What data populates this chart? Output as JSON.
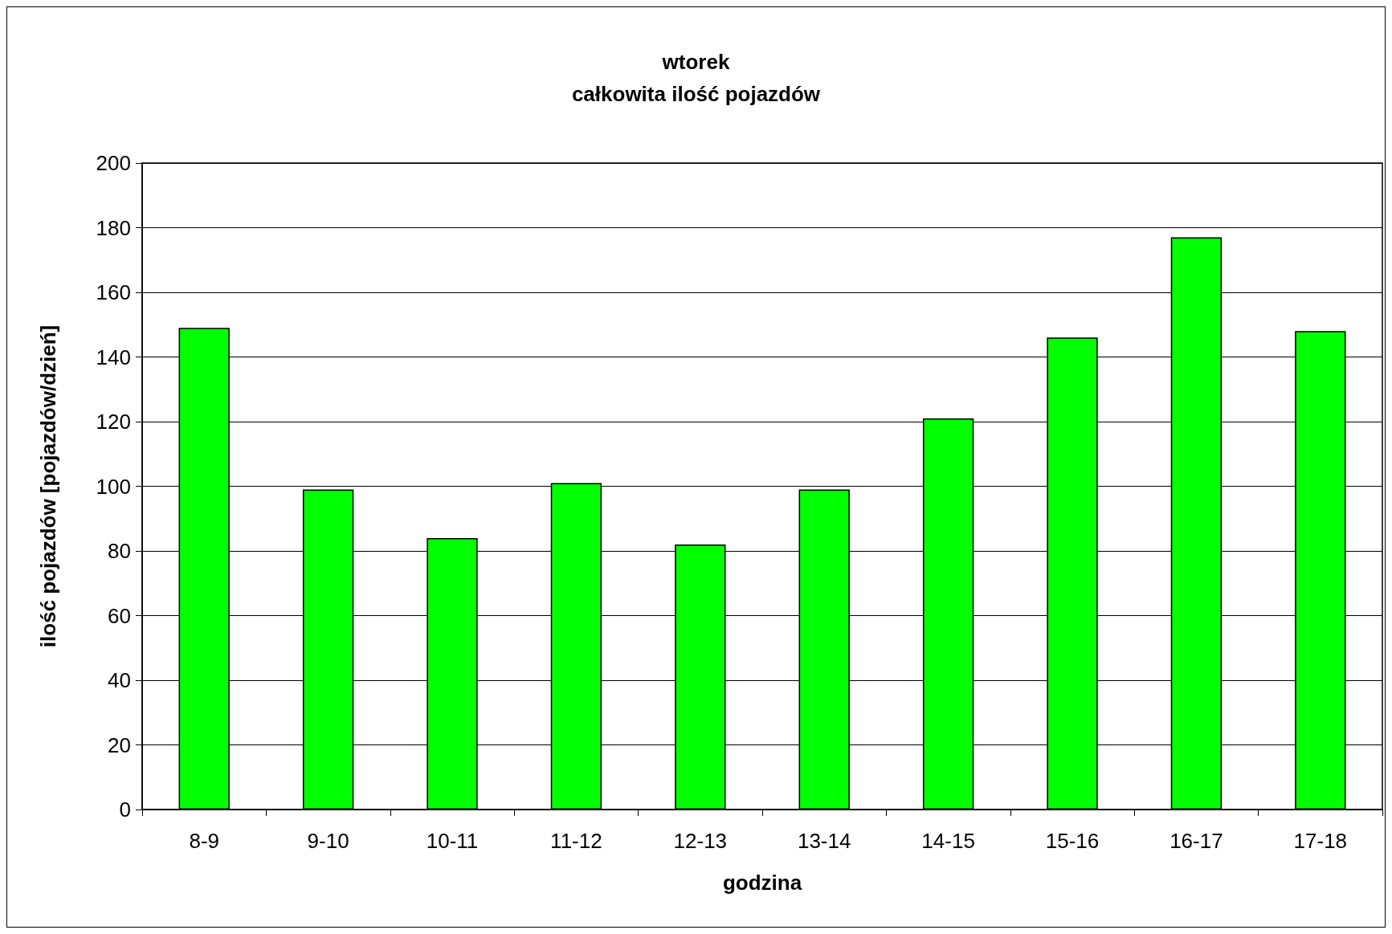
{
  "chart_data": {
    "type": "bar",
    "title": "wtorek",
    "subtitle": "całkowita ilość pojazdów",
    "xlabel": "godzina",
    "ylabel": "ilość pojazdów [pojazdów/dzień]",
    "categories": [
      "8-9",
      "9-10",
      "10-11",
      "11-12",
      "12-13",
      "13-14",
      "14-15",
      "15-16",
      "16-17",
      "17-18"
    ],
    "values": [
      149,
      99,
      84,
      101,
      82,
      99,
      121,
      146,
      177,
      148
    ],
    "color": "#00ff00",
    "ylim": [
      0,
      200
    ],
    "yticks": [
      0,
      20,
      40,
      60,
      80,
      100,
      120,
      140,
      160,
      180,
      200
    ],
    "grid": "y"
  }
}
